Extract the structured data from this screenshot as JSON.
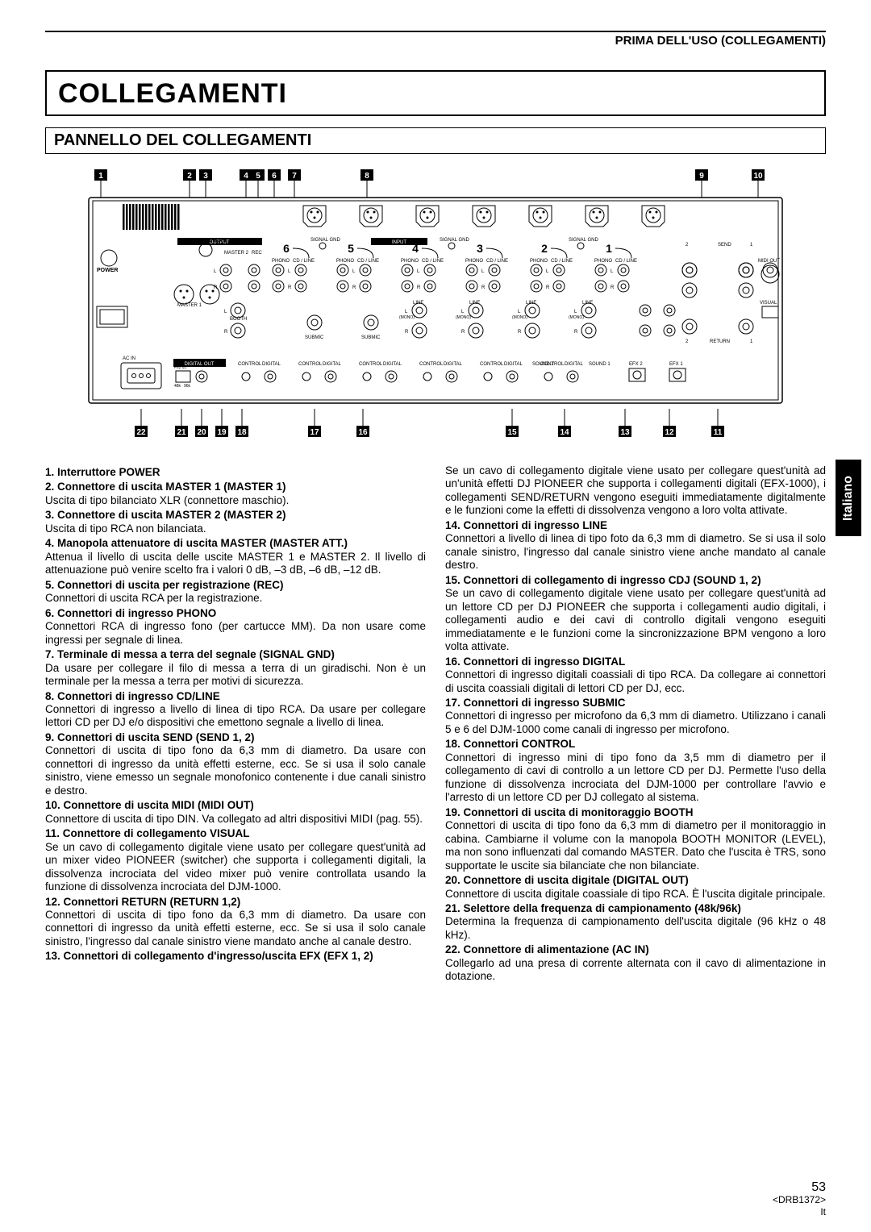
{
  "header": "PRIMA DELL'USO (COLLEGAMENTI)",
  "mainTitle": "COLLEGAMENTI",
  "sectionTitle": "PANNELLO DEL COLLEGAMENTI",
  "sideTab": "Italiano",
  "pageNum": "53",
  "footerCode": "<DRB1372>",
  "footerLang": "It",
  "diagram": {
    "topCallouts": [
      "1",
      "2",
      "3",
      "4",
      "5",
      "6",
      "7",
      "8",
      "9",
      "10"
    ],
    "bottomCallouts": [
      "22",
      "21",
      "20",
      "19",
      "18",
      "17",
      "16",
      "15",
      "14",
      "13",
      "12",
      "11"
    ],
    "channelNums": [
      "6",
      "5",
      "4",
      "3",
      "2",
      "1"
    ],
    "labels": {
      "output": "OUTPUT",
      "input": "INPUT",
      "power": "POWER",
      "master1": "MASTER 1",
      "master2": "MASTER 2",
      "rec": "REC",
      "phono": "PHONO",
      "cdline": "CD / LINE",
      "signalGnd": "SIGNAL GND",
      "send": "SEND",
      "return": "RETURN",
      "midiOut": "MIDI OUT",
      "visual": "VISUAL",
      "efx1": "EFX 1",
      "efx2": "EFX 2",
      "booth": "BOOTH",
      "submic": "SUBMIC",
      "line": "LINE",
      "mono": "(MONO)",
      "digital": "DIGITAL",
      "control": "CONTROL",
      "sound1": "SOUND 1",
      "sound2": "SOUND 2",
      "digitalOut": "DIGITAL OUT",
      "acIn": "AC IN",
      "coldMasterAtt": "COLD MASTER ATT",
      "hot": "HOT",
      "gnd": "GND",
      "L": "L",
      "R": "R",
      "fs": "Fs(Hz)",
      "k48": "48k",
      "k96": "96k"
    }
  },
  "leftCol": [
    {
      "t": "1. Interruttore POWER",
      "b": ""
    },
    {
      "t": "2. Connettore di uscita MASTER 1 (MASTER 1)",
      "b": "Uscita di tipo bilanciato XLR (connettore maschio)."
    },
    {
      "t": "3. Connettore di uscita MASTER 2 (MASTER 2)",
      "b": "Uscita di tipo RCA non bilanciata."
    },
    {
      "t": "4. Manopola attenuatore di uscita MASTER (MASTER ATT.)",
      "b": "Attenua il livello di uscita delle uscite MASTER 1 e MASTER 2. Il livello di attenuazione può venire scelto fra i valori 0 dB, –3 dB, –6 dB, –12 dB."
    },
    {
      "t": "5. Connettori di uscita per registrazione (REC)",
      "b": "Connettori di uscita RCA per la registrazione."
    },
    {
      "t": "6. Connettori di ingresso PHONO",
      "b": "Connettori RCA di ingresso fono (per cartucce MM). Da non usare come ingressi per segnale di linea."
    },
    {
      "t": "7. Terminale di messa a terra del segnale (SIGNAL GND)",
      "b": "Da usare per collegare il filo di messa a terra di un giradischi. Non è un terminale per la messa a terra per motivi di sicurezza."
    },
    {
      "t": "8. Connettori di ingresso CD/LINE",
      "b": "Connettori di ingresso a livello di linea di tipo RCA. Da usare per collegare lettori CD per DJ e/o dispositivi che emettono segnale a livello di linea."
    },
    {
      "t": "9. Connettori di uscita SEND (SEND 1, 2)",
      "b": "Connettori di uscita di tipo fono da 6,3 mm di diametro. Da usare con connettori di ingresso da unità effetti esterne, ecc. Se si usa il solo canale sinistro, viene emesso un segnale monofonico contenente i due canali sinistro e destro."
    },
    {
      "t": "10. Connettore di uscita MIDI (MIDI OUT)",
      "b": "Connettore di uscita di tipo DIN. Va collegato ad altri dispositivi MIDI (pag. 55)."
    },
    {
      "t": "11. Connettore di collegamento VISUAL",
      "b": "Se un cavo di collegamento digitale viene usato per collegare quest'unità ad un mixer video PIONEER (switcher) che supporta i collegamenti digitali, la dissolvenza incrociata del video mixer può venire controllata usando la funzione di dissolvenza incrociata del DJM-1000."
    },
    {
      "t": "12. Connettori RETURN (RETURN 1,2)",
      "b": "Connettori di uscita di tipo fono da 6,3 mm di diametro. Da usare con connettori di ingresso da unità effetti esterne, ecc. Se si usa il solo canale sinistro, l'ingresso dal canale sinistro viene mandato anche al canale destro."
    },
    {
      "t": "13. Connettori di collegamento d'ingresso/uscita EFX (EFX 1, 2)",
      "b": ""
    }
  ],
  "rightCol": [
    {
      "t": "",
      "b": "Se un cavo di collegamento digitale viene usato per collegare quest'unità ad un'unità effetti DJ PIONEER che supporta i collegamenti digitali (EFX-1000), i collegamenti SEND/RETURN vengono eseguiti immediatamente digitalmente e le funzioni come la effetti di dissolvenza vengono a loro volta attivate."
    },
    {
      "t": "14. Connettori di ingresso LINE",
      "b": "Connettori a livello di linea di tipo foto da 6,3 mm di diametro. Se si usa il solo canale sinistro, l'ingresso dal canale sinistro viene anche mandato al canale destro."
    },
    {
      "t": "15. Connettori di collegamento di ingresso CDJ (SOUND 1, 2)",
      "b": "Se un cavo di collegamento digitale viene usato per collegare quest'unità ad un lettore CD per DJ PIONEER che supporta i collegamenti audio digitali, i collegamenti audio e dei cavi di controllo digitali vengono eseguiti immediatamente e le funzioni come la sincronizzazione BPM vengono a loro volta attivate."
    },
    {
      "t": "16. Connettori di ingresso DIGITAL",
      "b": "Connettori di ingresso digitali coassiali di tipo RCA. Da collegare ai connettori di uscita coassiali digitali di lettori CD per DJ, ecc."
    },
    {
      "t": "17. Connettori di ingresso SUBMIC",
      "b": "Connettori di ingresso per microfono da 6,3 mm di diametro. Utilizzano i canali 5 e 6 del DJM-1000 come canali di ingresso per microfono."
    },
    {
      "t": "18. Connettori CONTROL",
      "b": "Connettori di ingresso mini di tipo fono da 3,5 mm di diametro per il collegamento di cavi di controllo a un lettore CD per DJ. Permette l'uso della funzione di dissolvenza incrociata del DJM-1000 per controllare l'avvio e l'arresto di un lettore CD per DJ collegato al sistema."
    },
    {
      "t": "19. Connettori di uscita di monitoraggio BOOTH",
      "b": "Connettori di uscita di tipo fono da 6,3 mm di diametro per il monitoraggio in cabina. Cambiarne il volume con la manopola BOOTH MONITOR (LEVEL), ma non sono influenzati dal comando MASTER. Dato che l'uscita è TRS, sono supportate le uscite sia bilanciate che non bilanciate."
    },
    {
      "t": "20. Connettore di uscita digitale (DIGITAL OUT)",
      "b": "Connettore di uscita digitale coassiale di tipo RCA. È l'uscita digitale principale."
    },
    {
      "t": "21. Selettore della frequenza di campionamento (48k/96k)",
      "b": "Determina la frequenza di campionamento dell'uscita digitale (96 kHz o 48 kHz)."
    },
    {
      "t": "22. Connettore di alimentazione (AC IN)",
      "b": "Collegarlo ad una presa di corrente alternata con il cavo di alimentazione in dotazione."
    }
  ]
}
